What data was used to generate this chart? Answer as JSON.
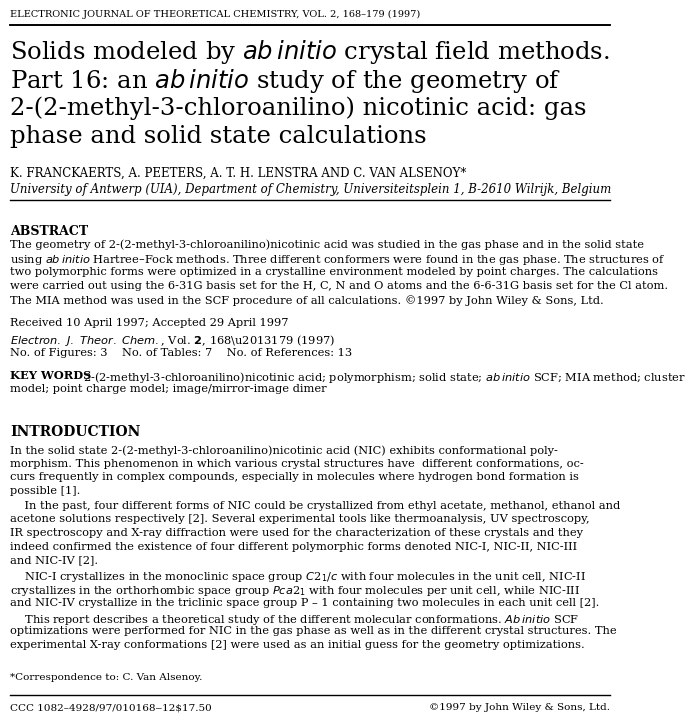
{
  "header": "ELECTRONIC JOURNAL OF THEORETICAL CHEMISTRY, VOL. 2, 168–179 (1997)",
  "authors": "K. FRANCKAERTS, A. PEETERS, A. T. H. LENSTRA AND C. VAN ALSENOY*",
  "affiliation": "University of Antwerp (UIA), Department of Chemistry, Universiteitsplein 1, B-2610 Wilrijk, Belgium",
  "abstract_title": "ABSTRACT",
  "received": "Received 10 April 1997; Accepted 29 April 1997",
  "nos": "No. of Figures: 3    No. of Tables: 7    No. of References: 13",
  "footnote": "*Correspondence to: C. Van Alsenoy.",
  "footer_left": "CCC 1082–4928/97/010168‒12$17.50",
  "footer_right": "©1997 by John Wiley & Sons, Ltd.",
  "bg_color": "#ffffff",
  "text_color": "#000000",
  "lm": 0.055,
  "rm": 0.975,
  "abstract_lines": [
    "The geometry of 2-(2-methyl-3-chloroanilino)nicotinic acid was studied in the gas phase and in the solid state",
    "using ABINIT_ITALIC Hartree–Fock methods. Three different conformers were found in the gas phase. The structures of",
    "two polymorphic forms were optimized in a crystalline environment modeled by point charges. The calculations",
    "were carried out using the 6-31G basis set for the H, C, N and O atoms and the 6-6-31G basis set for the Cl atom.",
    "The MIA method was used in the SCF procedure of all calculations. ©1997 by John Wiley & Sons, Ltd."
  ],
  "kw_line1": "2-(2-methyl-3-chloroanilino)nicotinic acid; polymorphism; solid state; ABINIT_ITALIC SCF; MIA method; cluster",
  "kw_line2": "model; point charge model; image/mirror-image dimer",
  "p1_lines": [
    "In the solid state 2-(2-methyl-3-chloroanilino)nicotinic acid (NIC) exhibits conformational poly-",
    "morphism. This phenomenon in which various crystal structures have  different conformations, oc-",
    "curs frequently in complex compounds, especially in molecules where hydrogen bond formation is",
    "possible [1]."
  ],
  "p2_lines": [
    "    In the past, four different forms of NIC could be crystallized from ethyl acetate, methanol, ethanol and",
    "acetone solutions respectively [2]. Several experimental tools like thermoanalysis, UV spectroscopy,",
    "IR spectroscopy and X-ray diffraction were used for the characterization of these crystals and they",
    "indeed confirmed the existence of four different polymorphic forms denoted NIC-I, NIC-II, NIC-III",
    "and NIC-IV [2]."
  ],
  "p3_lines": [
    "    NIC-I crystallizes in the monoclinic space group C21c_ITALIC with four molecules in the unit cell, NIC-II",
    "crystallizes in the orthorhombic space group Pca21_ITALIC with four molecules per unit cell, while NIC-III",
    "and NIC-IV crystallize in the triclinic space group P – 1 containing two molecules in each unit cell [2]."
  ],
  "p4_lines": [
    "    This report describes a theoretical study of the different molecular conformations. ABINITIO_ITALIC SCF",
    "optimizations were performed for NIC in the gas phase as well as in the different crystal structures. The",
    "experimental X-ray conformations [2] were used as an initial guess for the geometry optimizations."
  ]
}
